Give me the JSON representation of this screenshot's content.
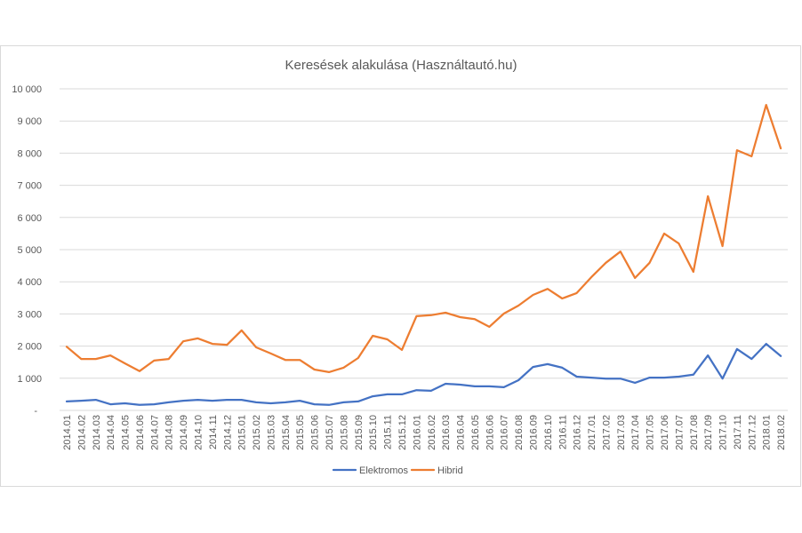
{
  "chart_data": {
    "type": "line",
    "title": "Keresések alakulása (Használtautó.hu)",
    "xlabel": "",
    "ylabel": "",
    "categories": [
      "2014.01",
      "2014.02",
      "2014.03",
      "2014.04",
      "2014.05",
      "2014.06",
      "2014.07",
      "2014.08",
      "2014.09",
      "2014.10",
      "2014.11",
      "2014.12",
      "2015.01",
      "2015.02",
      "2015.03",
      "2015.04",
      "2015.05",
      "2015.06",
      "2015.07",
      "2015.08",
      "2015.09",
      "2015.10",
      "2015.11",
      "2015.12",
      "2016.01",
      "2016.02",
      "2016.03",
      "2016.04",
      "2016.05",
      "2016.06",
      "2016.07",
      "2016.08",
      "2016.09",
      "2016.10",
      "2016.11",
      "2016.12",
      "2017.01",
      "2017.02",
      "2017.03",
      "2017.04",
      "2017.05",
      "2017.06",
      "2017.07",
      "2017.08",
      "2017.09",
      "2017.10",
      "2017.11",
      "2017.12",
      "2018.01",
      "2018.02"
    ],
    "series": [
      {
        "name": "Elektromos",
        "color": "#4472C4",
        "values": [
          280,
          300,
          330,
          190,
          220,
          170,
          190,
          250,
          300,
          330,
          300,
          330,
          330,
          250,
          220,
          250,
          300,
          190,
          170,
          250,
          280,
          440,
          500,
          500,
          630,
          610,
          830,
          800,
          750,
          750,
          720,
          940,
          1350,
          1440,
          1330,
          1050,
          1020,
          990,
          990,
          860,
          1020,
          1020,
          1050,
          1110,
          1710,
          990,
          1910,
          1600,
          2070,
          1690
        ]
      },
      {
        "name": "Hibrid",
        "color": "#ED7D31",
        "values": [
          1980,
          1600,
          1600,
          1710,
          1460,
          1220,
          1550,
          1600,
          2150,
          2240,
          2070,
          2040,
          2490,
          1960,
          1770,
          1570,
          1570,
          1270,
          1190,
          1330,
          1630,
          2320,
          2210,
          1880,
          2930,
          2960,
          3040,
          2900,
          2840,
          2600,
          3010,
          3260,
          3590,
          3780,
          3480,
          3650,
          4140,
          4590,
          4940,
          4120,
          4590,
          5500,
          5190,
          4310,
          6660,
          5110,
          8090,
          7900,
          9500,
          8150
        ]
      }
    ],
    "ylim": [
      0,
      10000
    ],
    "y_ticks": [
      0,
      1000,
      2000,
      3000,
      4000,
      5000,
      6000,
      7000,
      8000,
      9000,
      10000
    ],
    "y_tick_labels": [
      "-",
      "1 000",
      "2 000",
      "3 000",
      "4 000",
      "5 000",
      "6 000",
      "7 000",
      "8 000",
      "9 000",
      "10 000"
    ],
    "grid": true,
    "legend": "bottom",
    "text_color": "#595959",
    "grid_color": "#D9D9D9"
  }
}
